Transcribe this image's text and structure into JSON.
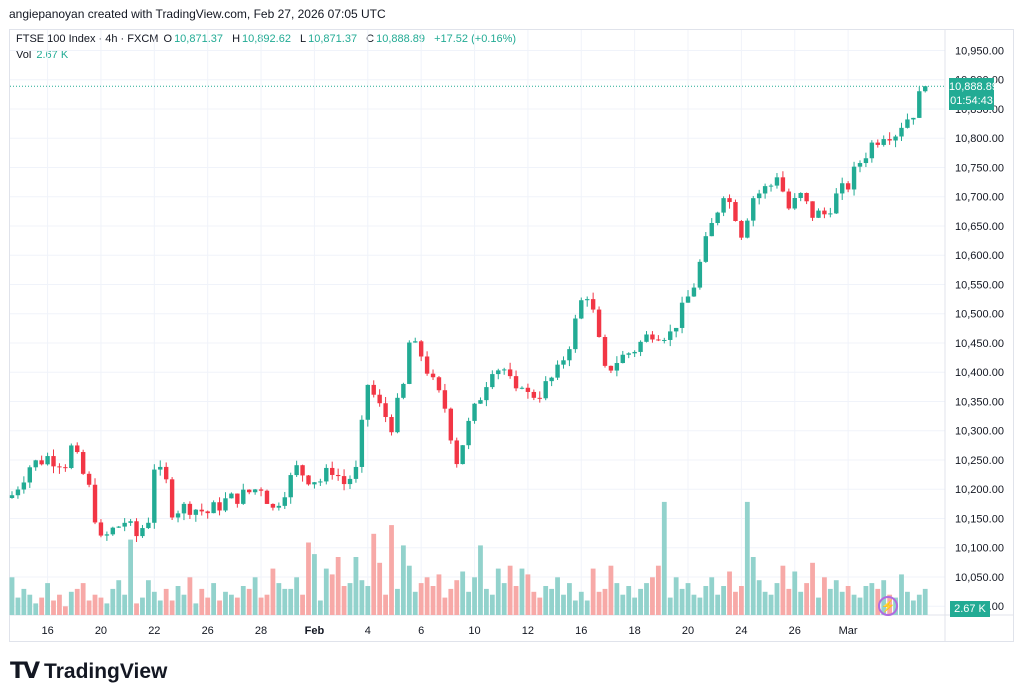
{
  "header": {
    "text": "angiepanoyan created with TradingView.com, Feb 27, 2026 07:05 UTC"
  },
  "legend": {
    "symbol": "FTSE 100 Index · 4h · FXCM",
    "open_label": "O",
    "open": "10,871.37",
    "high_label": "H",
    "high": "10,892.62",
    "low_label": "L",
    "low": "10,871.37",
    "close_label": "C",
    "close": "10,888.89",
    "change": "+17.52 (+0.16%)",
    "vol_label": "Vol",
    "vol": "2.67 K"
  },
  "price_tag": {
    "price": "10,888.89",
    "countdown": "01:54:43"
  },
  "volume_tag": "2.67 K",
  "brand": {
    "name": "TradingView",
    "mark": "TV"
  },
  "icons": {
    "flash": "lightning-bolt-icon"
  },
  "colors": {
    "up": "#22ab94",
    "down": "#f23645",
    "vol_up": "#92d2cc",
    "vol_down": "#f7a9a7"
  },
  "chart_data": {
    "type": "candlestick",
    "y_ticks": [
      "10,950.00",
      "10,900.00",
      "10,850.00",
      "10,800.00",
      "10,750.00",
      "10,700.00",
      "10,650.00",
      "10,600.00",
      "10,550.00",
      "10,500.00",
      "10,450.00",
      "10,400.00",
      "10,350.00",
      "10,300.00",
      "10,250.00",
      "10,200.00",
      "10,150.00",
      "10,100.00",
      "10,050.00",
      "10,000.00"
    ],
    "y_tick_values": [
      10950,
      10900,
      10850,
      10800,
      10750,
      10700,
      10650,
      10600,
      10550,
      10500,
      10450,
      10400,
      10350,
      10300,
      10250,
      10200,
      10150,
      10100,
      10050,
      10000
    ],
    "ylim": [
      9985,
      10985
    ],
    "x_ticks": [
      {
        "label": "16",
        "bar": 6
      },
      {
        "label": "20",
        "bar": 15
      },
      {
        "label": "22",
        "bar": 24
      },
      {
        "label": "26",
        "bar": 33
      },
      {
        "label": "28",
        "bar": 42
      },
      {
        "label": "Feb",
        "bar": 51
      },
      {
        "label": "4",
        "bar": 60
      },
      {
        "label": "6",
        "bar": 69
      },
      {
        "label": "10",
        "bar": 78
      },
      {
        "label": "12",
        "bar": 87
      },
      {
        "label": "16",
        "bar": 96
      },
      {
        "label": "18",
        "bar": 105
      },
      {
        "label": "20",
        "bar": 114
      },
      {
        "label": "24",
        "bar": 123
      },
      {
        "label": "26",
        "bar": 132
      },
      {
        "label": "Mar",
        "bar": 141
      }
    ],
    "last_price": 10888.89,
    "close_path": [
      [
        0,
        10190
      ],
      [
        3,
        10240
      ],
      [
        6,
        10255
      ],
      [
        9,
        10245
      ],
      [
        10,
        10270
      ],
      [
        11,
        10250
      ],
      [
        13,
        10200
      ],
      [
        15,
        10110
      ],
      [
        17,
        10130
      ],
      [
        19,
        10145
      ],
      [
        21,
        10120
      ],
      [
        23,
        10150
      ],
      [
        24,
        10240
      ],
      [
        26,
        10210
      ],
      [
        27,
        10165
      ],
      [
        30,
        10170
      ],
      [
        33,
        10160
      ],
      [
        36,
        10180
      ],
      [
        39,
        10190
      ],
      [
        42,
        10205
      ],
      [
        44,
        10165
      ],
      [
        46,
        10200
      ],
      [
        48,
        10235
      ],
      [
        50,
        10220
      ],
      [
        52,
        10215
      ],
      [
        54,
        10235
      ],
      [
        56,
        10210
      ],
      [
        58,
        10230
      ],
      [
        60,
        10380
      ],
      [
        62,
        10340
      ],
      [
        64,
        10310
      ],
      [
        66,
        10375
      ],
      [
        67,
        10450
      ],
      [
        69,
        10430
      ],
      [
        71,
        10380
      ],
      [
        73,
        10340
      ],
      [
        75,
        10250
      ],
      [
        77,
        10310
      ],
      [
        79,
        10360
      ],
      [
        81,
        10410
      ],
      [
        83,
        10405
      ],
      [
        85,
        10360
      ],
      [
        86,
        10385
      ],
      [
        87,
        10360
      ],
      [
        89,
        10365
      ],
      [
        92,
        10400
      ],
      [
        94,
        10450
      ],
      [
        96,
        10520
      ],
      [
        97,
        10535
      ],
      [
        98,
        10500
      ],
      [
        100,
        10400
      ],
      [
        102,
        10420
      ],
      [
        105,
        10440
      ],
      [
        108,
        10470
      ],
      [
        111,
        10465
      ],
      [
        113,
        10505
      ],
      [
        115,
        10550
      ],
      [
        117,
        10620
      ],
      [
        120,
        10710
      ],
      [
        122,
        10670
      ],
      [
        123,
        10640
      ],
      [
        125,
        10700
      ],
      [
        128,
        10720
      ],
      [
        129,
        10740
      ],
      [
        131,
        10680
      ],
      [
        133,
        10700
      ],
      [
        135,
        10670
      ],
      [
        137,
        10670
      ],
      [
        139,
        10700
      ],
      [
        141,
        10720
      ],
      [
        143,
        10760
      ],
      [
        145,
        10790
      ],
      [
        147,
        10810
      ],
      [
        149,
        10810
      ],
      [
        150,
        10825
      ],
      [
        152,
        10845
      ],
      [
        153,
        10870
      ],
      [
        154,
        10888.89
      ]
    ],
    "volume_max": 5,
    "volume_series": [
      1.3,
      0.6,
      0.9,
      0.7,
      0.4,
      0.6,
      1.1,
      0.5,
      0.7,
      0.3,
      0.8,
      0.9,
      1.1,
      0.5,
      0.7,
      0.6,
      0.4,
      0.9,
      1.2,
      0.7,
      2.6,
      0.4,
      0.6,
      1.2,
      0.8,
      0.5,
      0.9,
      0.5,
      1.0,
      0.7,
      1.3,
      0.4,
      0.9,
      0.6,
      1.1,
      0.5,
      0.8,
      0.7,
      0.6,
      1.0,
      0.9,
      1.3,
      0.6,
      0.7,
      1.6,
      1.1,
      0.9,
      0.9,
      1.3,
      0.7,
      2.5,
      2.1,
      0.5,
      1.6,
      1.4,
      2.0,
      1.0,
      1.1,
      2.0,
      1.2,
      1.0,
      2.8,
      1.8,
      0.7,
      3.1,
      0.9,
      2.4,
      1.7,
      0.8,
      1.1,
      1.3,
      1.0,
      1.4,
      0.6,
      0.9,
      1.2,
      1.5,
      0.8,
      1.3,
      2.4,
      0.9,
      0.7,
      1.6,
      1.1,
      1.7,
      1.0,
      1.6,
      1.4,
      0.8,
      0.6,
      1.0,
      0.9,
      1.3,
      0.7,
      1.1,
      0.5,
      0.8,
      0.5,
      1.6,
      0.8,
      0.9,
      1.7,
      1.1,
      0.7,
      1.0,
      0.6,
      0.9,
      1.1,
      1.3,
      1.7,
      3.9,
      0.6,
      1.3,
      0.9,
      1.1,
      0.7,
      0.6,
      1.0,
      1.3,
      0.7,
      1.0,
      1.5,
      0.8,
      1.0,
      3.9,
      2.0,
      1.2,
      0.8,
      0.7,
      1.1,
      1.7,
      0.9,
      1.5,
      0.8,
      1.1,
      1.8,
      0.6,
      1.3,
      0.9,
      1.2,
      0.8,
      1.0,
      0.7,
      0.6,
      1.0,
      1.1,
      0.9,
      1.2,
      0.7,
      0.6,
      1.4,
      0.8,
      0.5,
      0.7,
      0.9,
      0.5,
      0.3
    ]
  }
}
